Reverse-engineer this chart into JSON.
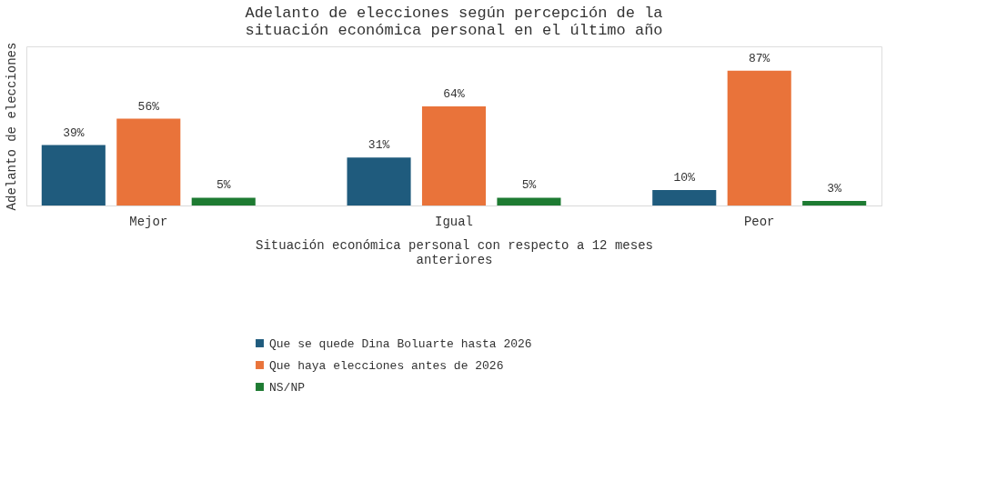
{
  "chart_data": {
    "type": "bar",
    "title": "Adelanto de elecciones según percepción de la situación económica personal en el último año",
    "xlabel": "Situación económica personal con respecto a 12 meses anteriores",
    "ylabel": "Adelanto de elecciones",
    "categories": [
      "Mejor",
      "Igual",
      "Peor"
    ],
    "series": [
      {
        "name": "Que se quede Dina Boluarte hasta 2026",
        "color": "#1f5b7d",
        "values": [
          39,
          31,
          10
        ],
        "value_labels": [
          "39%",
          "31%",
          "10%"
        ]
      },
      {
        "name": "Que haya elecciones antes de 2026",
        "color": "#e9733a",
        "values": [
          56,
          64,
          87
        ],
        "value_labels": [
          "56%",
          "64%",
          "87%"
        ]
      },
      {
        "name": "NS/NP",
        "color": "#1e7b32",
        "values": [
          5,
          5,
          3
        ],
        "value_labels": [
          "5%",
          "5%",
          "3%"
        ]
      }
    ],
    "legend": "bottom",
    "grid": false
  }
}
